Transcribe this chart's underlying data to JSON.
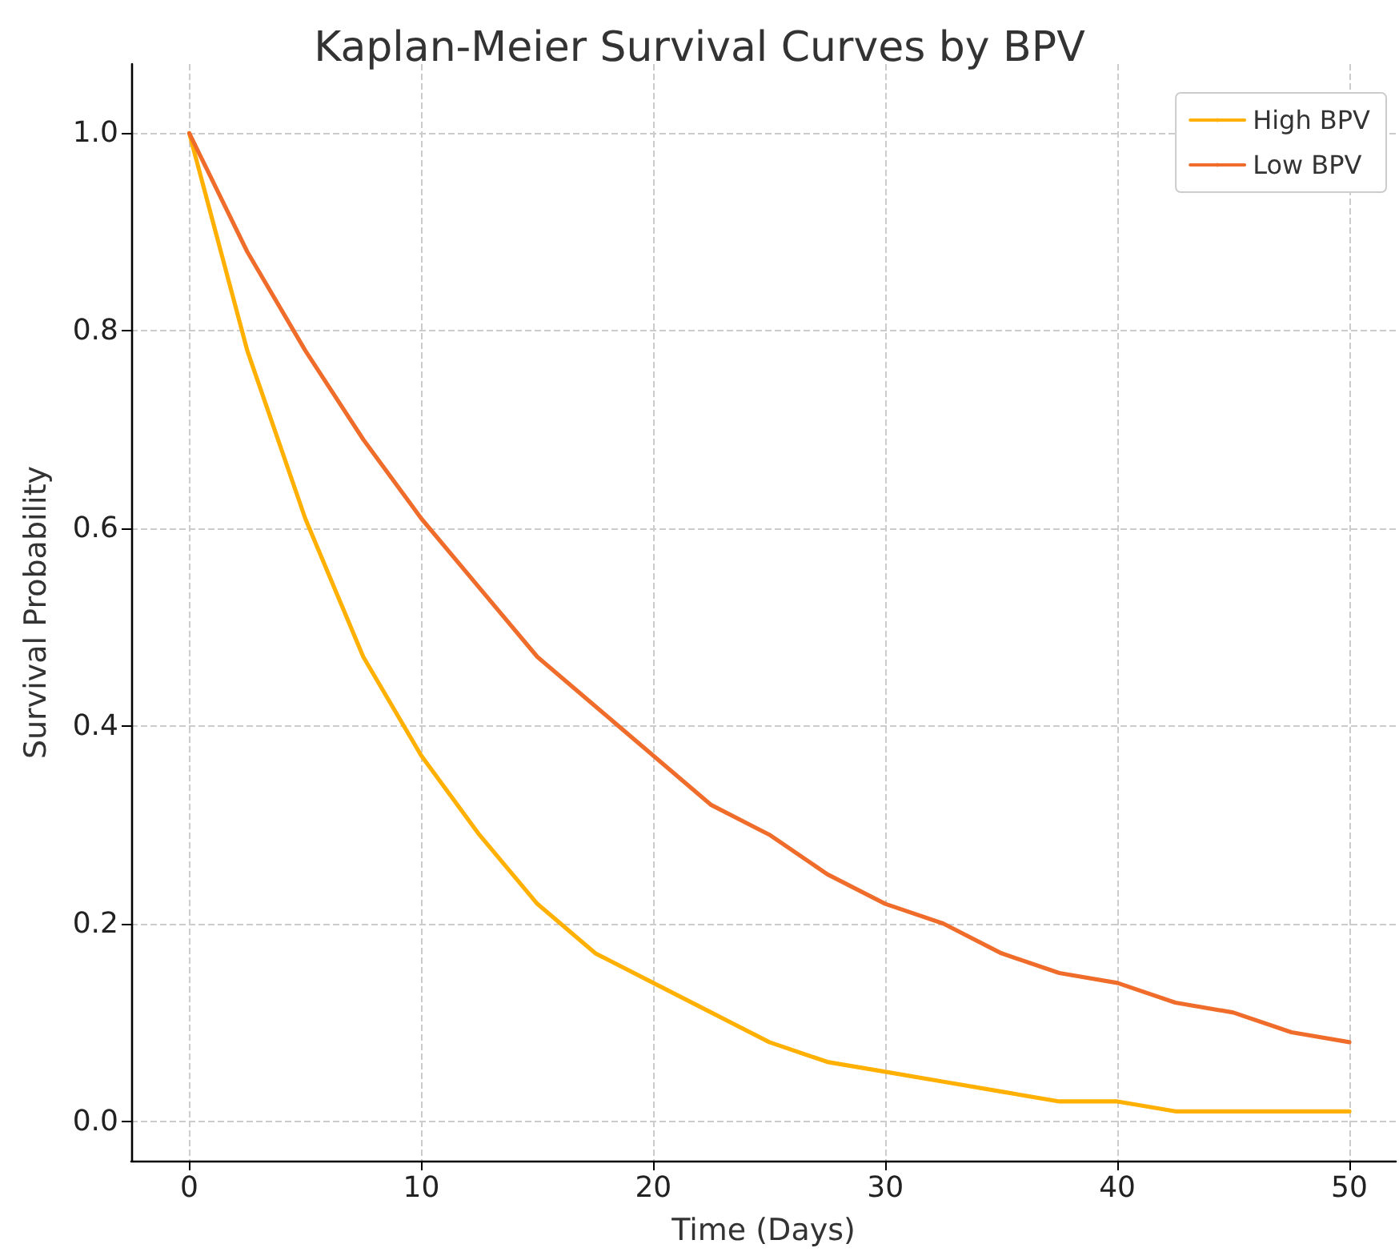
{
  "chart_data": {
    "type": "line",
    "title": "Kaplan-Meier Survival Curves by BPV",
    "xlabel": "Time (Days)",
    "ylabel": "Survival Probability",
    "x": [
      0,
      2.5,
      5,
      7.5,
      10,
      12.5,
      15,
      17.5,
      20,
      22.5,
      25,
      27.5,
      30,
      32.5,
      35,
      37.5,
      40,
      42.5,
      45,
      47.5,
      50
    ],
    "series": [
      {
        "name": "High BPV",
        "color": "#ffb000",
        "values": [
          1.0,
          0.78,
          0.61,
          0.47,
          0.37,
          0.29,
          0.22,
          0.17,
          0.14,
          0.11,
          0.08,
          0.06,
          0.05,
          0.04,
          0.03,
          0.02,
          0.02,
          0.01,
          0.01,
          0.01,
          0.01
        ]
      },
      {
        "name": "Low BPV",
        "color": "#f06c2a",
        "values": [
          1.0,
          0.88,
          0.78,
          0.69,
          0.61,
          0.54,
          0.47,
          0.42,
          0.37,
          0.32,
          0.29,
          0.25,
          0.22,
          0.2,
          0.17,
          0.15,
          0.14,
          0.12,
          0.11,
          0.09,
          0.08
        ]
      }
    ],
    "xlim": [
      -2.5,
      52
    ],
    "xticks": [
      0,
      10,
      20,
      30,
      40,
      50
    ],
    "ylim": [
      -0.04,
      1.07
    ],
    "yticks": [
      {
        "value": 0,
        "label": "0.0"
      },
      {
        "value": 0.2,
        "label": "0.2"
      },
      {
        "value": 0.4,
        "label": "0.4"
      },
      {
        "value": 0.6,
        "label": "0.6"
      },
      {
        "value": 0.8,
        "label": "0.8"
      },
      {
        "value": 1,
        "label": "1.0"
      }
    ],
    "grid": true,
    "legend": "top right",
    "marker": "none",
    "line_style": "solid"
  }
}
